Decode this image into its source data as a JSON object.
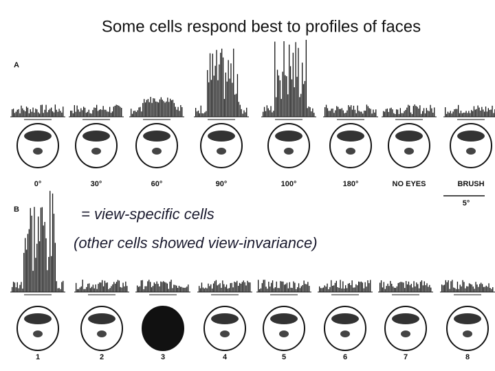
{
  "title": "Some cells respond best to profiles of faces",
  "panel_a": {
    "label": "A",
    "conditions": [
      "0°",
      "30°",
      "60°",
      "90°",
      "100°",
      "180°",
      "NO EYES",
      "BRUSH"
    ],
    "scale": "5°"
  },
  "panel_b": {
    "label": "B",
    "conditions": [
      "1",
      "2",
      "3",
      "4",
      "5",
      "6",
      "7",
      "8"
    ]
  },
  "annotations": {
    "view_specific": "= view-specific cells",
    "view_invariance": "(other cells showed view-invariance)"
  }
}
